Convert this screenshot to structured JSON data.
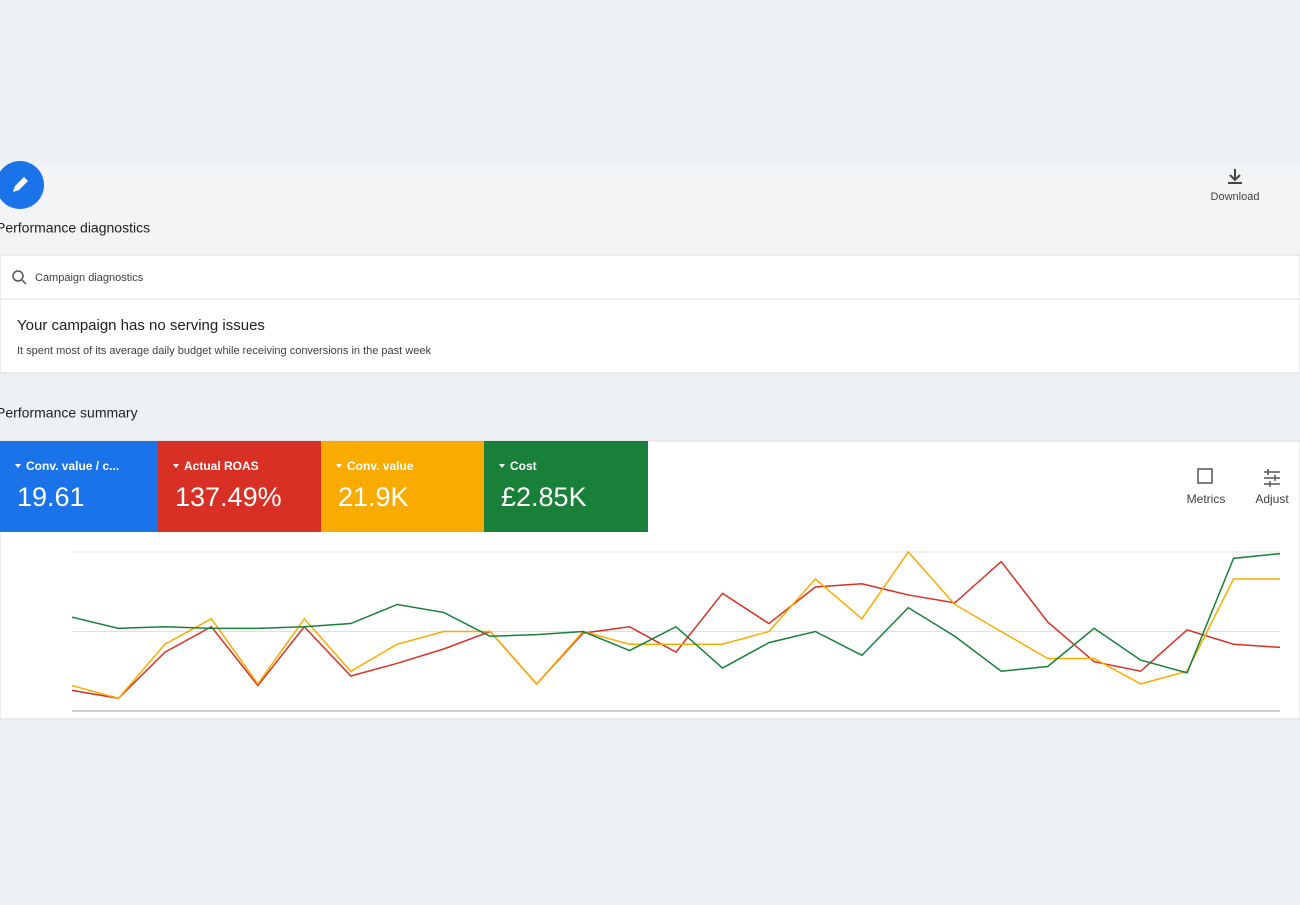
{
  "toolbar": {
    "download": "Download"
  },
  "diagnostics": {
    "title": "Performance diagnostics",
    "tab": "Campaign diagnostics",
    "headline": "Your campaign has no serving issues",
    "detail": "It spent most of its average daily budget while receiving conversions in the past week"
  },
  "summary": {
    "title": "Performance summary",
    "cards": [
      {
        "label": "Conv. value / c...",
        "value": "19.61",
        "color": "#1a73e8"
      },
      {
        "label": "Actual ROAS",
        "value": "137.49%",
        "color": "#d93025"
      },
      {
        "label": "Conv. value",
        "value": "21.9K",
        "color": "#f9ab00"
      },
      {
        "label": "Cost",
        "value": "£2.85K",
        "color": "#188038"
      }
    ],
    "actions": [
      "Metrics",
      "Adjust"
    ]
  },
  "chart_data": {
    "type": "line",
    "ylim": [
      0,
      100
    ],
    "yticks": [
      0,
      50,
      100
    ],
    "grid": true,
    "series": [
      {
        "color": "#d93025",
        "values": [
          13,
          8,
          37,
          53,
          16,
          53,
          22,
          30,
          39,
          50,
          17,
          49,
          53,
          37,
          74,
          55,
          78,
          80,
          73,
          68,
          94,
          56,
          31,
          25,
          51,
          42,
          40
        ]
      },
      {
        "color": "#f9ab00",
        "values": [
          16,
          8,
          42,
          58,
          17,
          58,
          25,
          42,
          50,
          50,
          17,
          50,
          42,
          42,
          42,
          50,
          83,
          58,
          100,
          67,
          50,
          33,
          33,
          17,
          25,
          83,
          83
        ]
      },
      {
        "color": "#188038",
        "values": [
          59,
          52,
          53,
          52,
          52,
          53,
          55,
          67,
          62,
          47,
          48,
          50,
          38,
          53,
          27,
          43,
          50,
          35,
          65,
          47,
          25,
          28,
          52,
          32,
          24,
          96,
          99
        ]
      }
    ]
  }
}
